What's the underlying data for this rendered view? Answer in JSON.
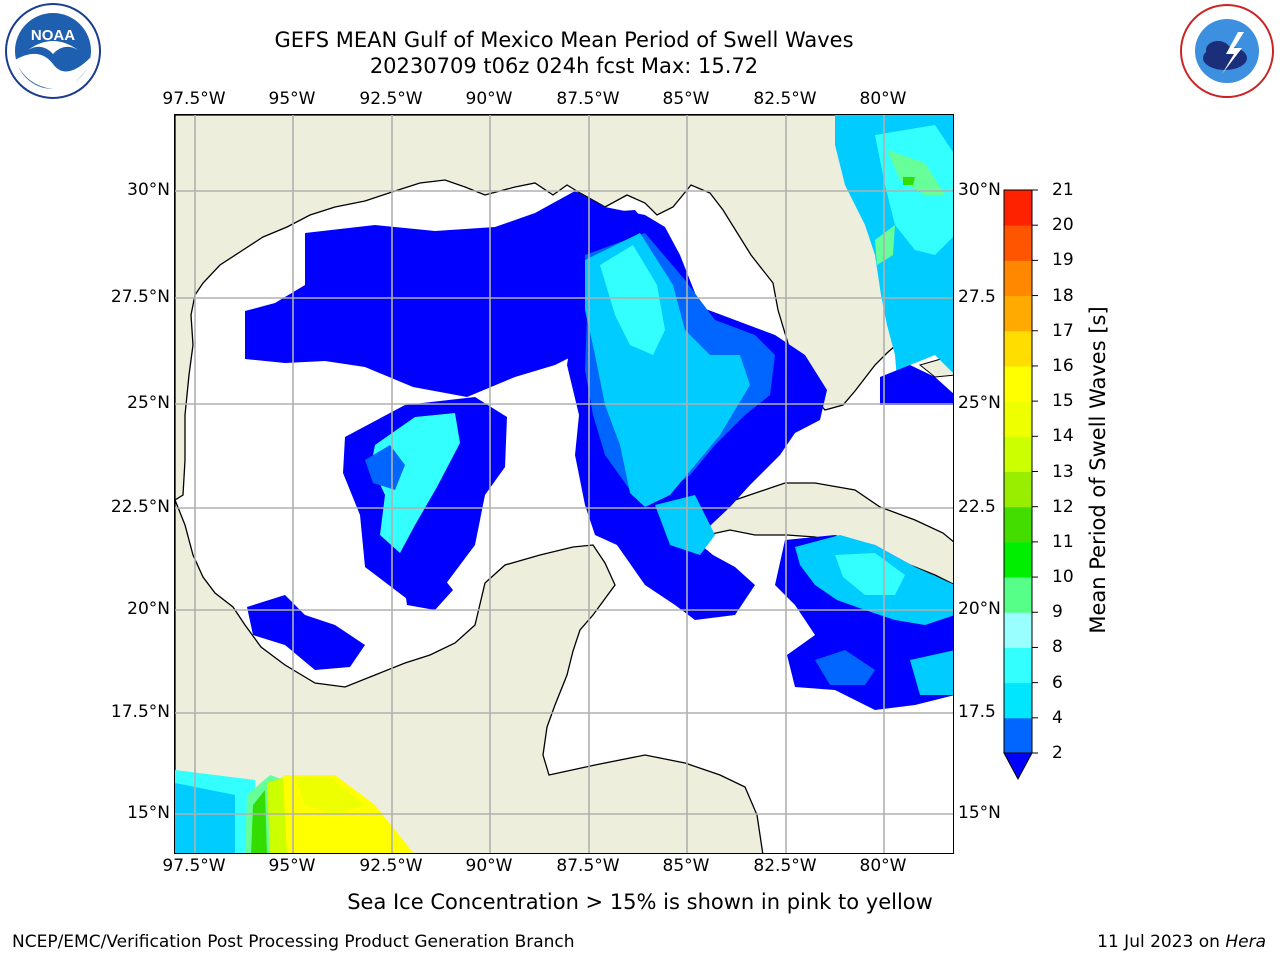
{
  "title_line1": "GEFS MEAN Gulf of Mexico Mean Period of Swell Waves",
  "title_line2": "20230709 t06z 024h fcst   Max: 15.72",
  "lon_labels": [
    "97.5°W",
    "95°W",
    "92.5°W",
    "90°W",
    "87.5°W",
    "85°W",
    "82.5°W",
    "80°W"
  ],
  "lat_labels_left": [
    "30°N",
    "27.5°N",
    "25°N",
    "22.5°N",
    "20°N",
    "17.5°N",
    "15°N"
  ],
  "lat_labels_right": [
    "30°N",
    "27.5",
    "25°N",
    "22.5",
    "20°N",
    "17.5",
    "15°N"
  ],
  "colorbar": {
    "title": "Mean Period of Swell Waves [s]",
    "ticks": [
      "2",
      "4",
      "6",
      "8",
      "9",
      "10",
      "11",
      "12",
      "13",
      "14",
      "15",
      "16",
      "17",
      "18",
      "19",
      "20",
      "21"
    ],
    "colors": [
      "#0000ff",
      "#0066ff",
      "#00ccff",
      "#33ffff",
      "#80ffff",
      "#b3ffe6",
      "#66ff99",
      "#33ff66",
      "#00ee33",
      "#33dd00",
      "#99ee00",
      "#ccff00",
      "#eeff00",
      "#ffff00",
      "#ffee00",
      "#ffcc00",
      "#ffaa00",
      "#ff8800",
      "#ff6600",
      "#ff4400",
      "#ff2200",
      "#ff0000"
    ]
  },
  "footer_note": "Sea Ice Concentration > 15% is shown in pink to yellow",
  "credit": "NCEP/EMC/Verification Post Processing Product Generation Branch",
  "date_text": "11 Jul 2023 on ",
  "date_machine": "Hera",
  "logos": {
    "noaa": "NOAA",
    "nws": "NATIONAL WEATHER SERVICE"
  },
  "land_color": "#eeeedc",
  "grid_color": "#b0b0b0"
}
